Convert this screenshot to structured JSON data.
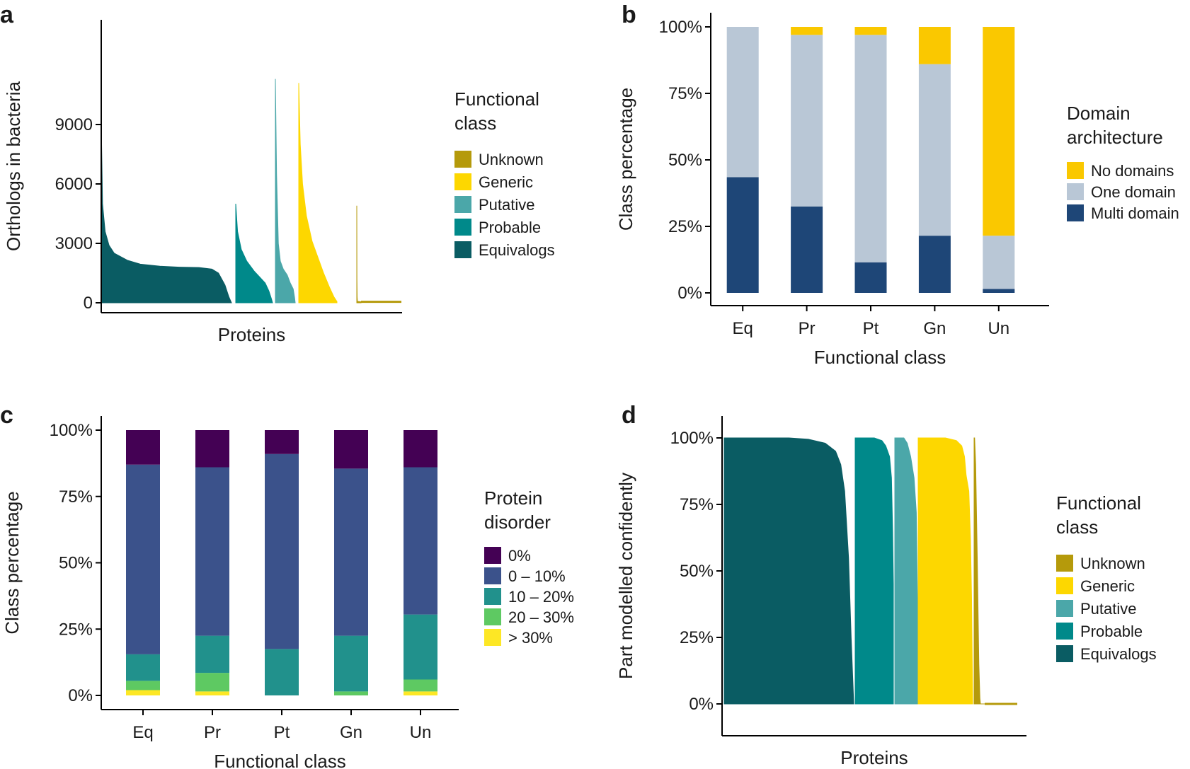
{
  "chart_data": [
    {
      "panel": "a",
      "type": "area",
      "xlabel": "Proteins",
      "ylabel": "Orthologs in bacteria",
      "ylim": [
        0,
        12500
      ],
      "yticks": [
        "0",
        "3000",
        "6000",
        "9000"
      ],
      "ytick_values": [
        0,
        3000,
        6000,
        9000
      ],
      "legend": {
        "title": [
          "Functional",
          "class"
        ],
        "placement": "right",
        "items": [
          "Unknown",
          "Generic",
          "Putative",
          "Probable",
          "Equivalogs"
        ]
      },
      "series": [
        {
          "name": "Equivalogs",
          "color": "#0a5c63",
          "max": 9100,
          "plateau": 1800,
          "points": [
            [
              0,
              9100
            ],
            [
              0.01,
              5000
            ],
            [
              0.03,
              3600
            ],
            [
              0.06,
              2900
            ],
            [
              0.1,
              2500
            ],
            [
              0.2,
              2150
            ],
            [
              0.3,
              1950
            ],
            [
              0.45,
              1850
            ],
            [
              0.6,
              1800
            ],
            [
              0.75,
              1780
            ],
            [
              0.85,
              1700
            ],
            [
              0.9,
              1500
            ],
            [
              0.95,
              900
            ],
            [
              0.98,
              300
            ],
            [
              1,
              0
            ]
          ]
        },
        {
          "name": "Probable",
          "color": "#00898a",
          "max": 5000,
          "points": [
            [
              0,
              5000
            ],
            [
              0.05,
              3600
            ],
            [
              0.15,
              2700
            ],
            [
              0.3,
              2100
            ],
            [
              0.5,
              1600
            ],
            [
              0.65,
              1300
            ],
            [
              0.8,
              1000
            ],
            [
              0.9,
              600
            ],
            [
              0.97,
              200
            ],
            [
              1,
              0
            ]
          ]
        },
        {
          "name": "Putative",
          "color": "#4ba7a9",
          "max": 11300,
          "points": [
            [
              0,
              11300
            ],
            [
              0.06,
              6500
            ],
            [
              0.15,
              3000
            ],
            [
              0.25,
              2100
            ],
            [
              0.4,
              1700
            ],
            [
              0.6,
              1400
            ],
            [
              0.75,
              1000
            ],
            [
              0.9,
              700
            ],
            [
              0.97,
              250
            ],
            [
              1,
              0
            ]
          ]
        },
        {
          "name": "Generic",
          "color": "#fdd700",
          "max": 11100,
          "points": [
            [
              0,
              11100
            ],
            [
              0.04,
              8000
            ],
            [
              0.1,
              6000
            ],
            [
              0.2,
              4400
            ],
            [
              0.35,
              3100
            ],
            [
              0.5,
              2300
            ],
            [
              0.65,
              1500
            ],
            [
              0.8,
              800
            ],
            [
              0.92,
              300
            ],
            [
              1,
              60
            ]
          ]
        },
        {
          "name": "Unknown",
          "color": "#b59a0b",
          "max": 4900,
          "points": [
            [
              0,
              4900
            ],
            [
              0.03,
              1200
            ],
            [
              0.08,
              300
            ],
            [
              0.15,
              70
            ],
            [
              1,
              50
            ]
          ]
        }
      ]
    },
    {
      "panel": "b",
      "type": "bar",
      "xlabel": "Functional class",
      "ylabel": "Class percentage",
      "categories": [
        "Eq",
        "Pr",
        "Pt",
        "Gn",
        "Un"
      ],
      "ylim": [
        0,
        100
      ],
      "yticks": [
        "0%",
        "25%",
        "50%",
        "75%",
        "100%"
      ],
      "legend": {
        "title": [
          "Domain",
          "architecture"
        ],
        "placement": "right",
        "items": [
          "No domains",
          "One domain",
          "Multi domain"
        ]
      },
      "series": [
        {
          "name": "Multi domain",
          "color": "#1e4677",
          "values": [
            43.5,
            32.5,
            11.5,
            21.5,
            1.5
          ]
        },
        {
          "name": "One domain",
          "color": "#b9c7d6",
          "values": [
            56.5,
            64.5,
            85.5,
            64.5,
            20.0
          ]
        },
        {
          "name": "No domains",
          "color": "#fac800",
          "values": [
            0.0,
            3.0,
            3.0,
            14.0,
            78.5
          ]
        }
      ]
    },
    {
      "panel": "c",
      "type": "bar",
      "xlabel": "Functional class",
      "ylabel": "Class percentage",
      "categories": [
        "Eq",
        "Pr",
        "Pt",
        "Gn",
        "Un"
      ],
      "ylim": [
        0,
        100
      ],
      "yticks": [
        "0%",
        "25%",
        "50%",
        "75%",
        "100%"
      ],
      "legend": {
        "title": [
          "Protein",
          "disorder"
        ],
        "placement": "right",
        "items": [
          "0%",
          "0 – 10%",
          "10 – 20%",
          "20 – 30%",
          "> 30%"
        ]
      },
      "series": [
        {
          "name": "> 30%",
          "color": "#fde725",
          "values": [
            2.0,
            1.5,
            0.0,
            0.0,
            1.5
          ]
        },
        {
          "name": "20 – 30%",
          "color": "#5ec962",
          "values": [
            3.5,
            7.0,
            0.0,
            1.5,
            4.5
          ]
        },
        {
          "name": "10 – 20%",
          "color": "#21918c",
          "values": [
            10.0,
            14.0,
            17.5,
            21.0,
            24.5
          ]
        },
        {
          "name": "0 – 10%",
          "color": "#3b528b",
          "values": [
            71.5,
            63.5,
            73.5,
            63.0,
            55.5
          ]
        },
        {
          "name": "0%",
          "color": "#440154",
          "values": [
            13.0,
            14.0,
            9.0,
            14.5,
            14.0
          ]
        }
      ]
    },
    {
      "panel": "d",
      "type": "area",
      "xlabel": "Proteins",
      "ylabel": "Part modelled confidently",
      "ylim": [
        0,
        100
      ],
      "yticks": [
        "0%",
        "25%",
        "50%",
        "75%",
        "100%"
      ],
      "legend": {
        "title": [
          "Functional",
          "class"
        ],
        "placement": "right",
        "items": [
          "Unknown",
          "Generic",
          "Putative",
          "Probable",
          "Equivalogs"
        ]
      },
      "series": [
        {
          "name": "Equivalogs",
          "color": "#0a5c63",
          "points": [
            [
              0,
              100
            ],
            [
              0.5,
              100
            ],
            [
              0.65,
              99.5
            ],
            [
              0.78,
              98
            ],
            [
              0.86,
              95
            ],
            [
              0.9,
              90
            ],
            [
              0.93,
              80
            ],
            [
              0.96,
              55
            ],
            [
              0.98,
              25
            ],
            [
              1,
              0
            ]
          ]
        },
        {
          "name": "Probable",
          "color": "#00898a",
          "points": [
            [
              0,
              100
            ],
            [
              0.5,
              100
            ],
            [
              0.7,
              99
            ],
            [
              0.8,
              97
            ],
            [
              0.9,
              93
            ],
            [
              0.95,
              85
            ],
            [
              0.98,
              65
            ],
            [
              1,
              45
            ]
          ]
        },
        {
          "name": "Putative",
          "color": "#4ba7a9",
          "points": [
            [
              0,
              100
            ],
            [
              0.4,
              100
            ],
            [
              0.55,
              98
            ],
            [
              0.7,
              93
            ],
            [
              0.85,
              85
            ],
            [
              0.95,
              72
            ],
            [
              1,
              40
            ]
          ]
        },
        {
          "name": "Generic",
          "color": "#fdd700",
          "points": [
            [
              0,
              100
            ],
            [
              0.5,
              100
            ],
            [
              0.7,
              99
            ],
            [
              0.8,
              97
            ],
            [
              0.85,
              93
            ],
            [
              0.88,
              86
            ],
            [
              0.93,
              80
            ],
            [
              0.96,
              62
            ],
            [
              0.98,
              40
            ],
            [
              1,
              0
            ]
          ]
        },
        {
          "name": "Unknown",
          "color": "#b59a0b",
          "points": [
            [
              0,
              100
            ],
            [
              0.05,
              100
            ],
            [
              0.15,
              90
            ],
            [
              0.3,
              55
            ],
            [
              0.45,
              15
            ],
            [
              0.55,
              2
            ],
            [
              0.6,
              0
            ],
            [
              1,
              0
            ]
          ]
        }
      ]
    }
  ]
}
